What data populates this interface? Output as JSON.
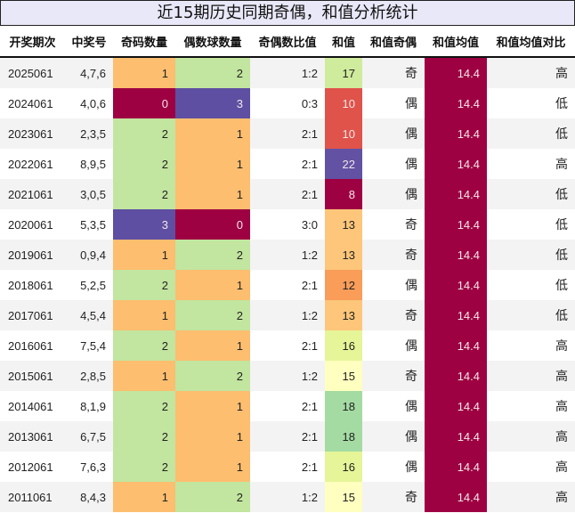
{
  "title": "近15期历史同期奇偶，和值分析统计",
  "headers": [
    "开奖期次",
    "中奖号",
    "奇码数量",
    "偶数球数量",
    "奇偶数比值",
    "和值",
    "和值奇偶",
    "和值均值",
    "和值均值对比"
  ],
  "colors": {
    "odd_count": {
      "0": "#9e0142",
      "1": "#fdbe6f",
      "2": "#c2e59f",
      "3": "#5e4fa2"
    },
    "even_count": {
      "0": "#9e0142",
      "1": "#fdbe6f",
      "2": "#c2e59f",
      "3": "#5e4fa2"
    },
    "sum": {
      "8": "#9e0142",
      "10": "#e0534a",
      "12": "#f99d59",
      "13": "#fdc67a",
      "15": "#ffffbf",
      "16": "#e6f598",
      "17": "#cfeb9c",
      "18": "#a4dba3",
      "22": "#6351a3"
    },
    "mean": "#9e0142"
  },
  "rows": [
    {
      "period": "2025061",
      "numbers": "4,7,6",
      "odd": "1",
      "even": "2",
      "ratio": "1:2",
      "sum": "17",
      "sum_parity": "奇",
      "mean": "14.4",
      "compare": "高"
    },
    {
      "period": "2024061",
      "numbers": "4,0,6",
      "odd": "0",
      "even": "3",
      "ratio": "0:3",
      "sum": "10",
      "sum_parity": "偶",
      "mean": "14.4",
      "compare": "低"
    },
    {
      "period": "2023061",
      "numbers": "2,3,5",
      "odd": "2",
      "even": "1",
      "ratio": "2:1",
      "sum": "10",
      "sum_parity": "偶",
      "mean": "14.4",
      "compare": "低"
    },
    {
      "period": "2022061",
      "numbers": "8,9,5",
      "odd": "2",
      "even": "1",
      "ratio": "2:1",
      "sum": "22",
      "sum_parity": "偶",
      "mean": "14.4",
      "compare": "高"
    },
    {
      "period": "2021061",
      "numbers": "3,0,5",
      "odd": "2",
      "even": "1",
      "ratio": "2:1",
      "sum": "8",
      "sum_parity": "偶",
      "mean": "14.4",
      "compare": "低"
    },
    {
      "period": "2020061",
      "numbers": "5,3,5",
      "odd": "3",
      "even": "0",
      "ratio": "3:0",
      "sum": "13",
      "sum_parity": "奇",
      "mean": "14.4",
      "compare": "低"
    },
    {
      "period": "2019061",
      "numbers": "0,9,4",
      "odd": "1",
      "even": "2",
      "ratio": "1:2",
      "sum": "13",
      "sum_parity": "奇",
      "mean": "14.4",
      "compare": "低"
    },
    {
      "period": "2018061",
      "numbers": "5,2,5",
      "odd": "2",
      "even": "1",
      "ratio": "2:1",
      "sum": "12",
      "sum_parity": "偶",
      "mean": "14.4",
      "compare": "低"
    },
    {
      "period": "2017061",
      "numbers": "4,5,4",
      "odd": "1",
      "even": "2",
      "ratio": "1:2",
      "sum": "13",
      "sum_parity": "奇",
      "mean": "14.4",
      "compare": "低"
    },
    {
      "period": "2016061",
      "numbers": "7,5,4",
      "odd": "2",
      "even": "1",
      "ratio": "2:1",
      "sum": "16",
      "sum_parity": "偶",
      "mean": "14.4",
      "compare": "高"
    },
    {
      "period": "2015061",
      "numbers": "2,8,5",
      "odd": "1",
      "even": "2",
      "ratio": "1:2",
      "sum": "15",
      "sum_parity": "奇",
      "mean": "14.4",
      "compare": "高"
    },
    {
      "period": "2014061",
      "numbers": "8,1,9",
      "odd": "2",
      "even": "1",
      "ratio": "2:1",
      "sum": "18",
      "sum_parity": "偶",
      "mean": "14.4",
      "compare": "高"
    },
    {
      "period": "2013061",
      "numbers": "6,7,5",
      "odd": "2",
      "even": "1",
      "ratio": "2:1",
      "sum": "18",
      "sum_parity": "偶",
      "mean": "14.4",
      "compare": "高"
    },
    {
      "period": "2012061",
      "numbers": "7,6,3",
      "odd": "2",
      "even": "1",
      "ratio": "2:1",
      "sum": "16",
      "sum_parity": "偶",
      "mean": "14.4",
      "compare": "高"
    },
    {
      "period": "2011061",
      "numbers": "8,4,3",
      "odd": "1",
      "even": "2",
      "ratio": "1:2",
      "sum": "15",
      "sum_parity": "奇",
      "mean": "14.4",
      "compare": "高"
    }
  ]
}
